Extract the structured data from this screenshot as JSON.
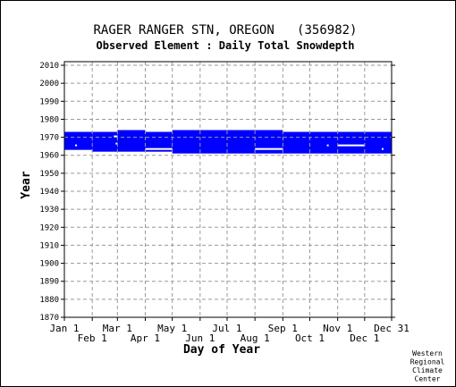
{
  "chart_data": {
    "type": "heatmap",
    "title": "RAGER RANGER STN, OREGON   (356982)",
    "subtitle": "Observed Element : Daily Total Snowdepth",
    "xlabel": "Day of Year",
    "ylabel": "Year",
    "credit": [
      "Western",
      "Regional",
      "Climate",
      "Center"
    ],
    "x_range_days": [
      1,
      365
    ],
    "ylim": [
      1870,
      2012
    ],
    "y_ticks": [
      1870,
      1880,
      1890,
      1900,
      1910,
      1920,
      1930,
      1940,
      1950,
      1960,
      1970,
      1980,
      1990,
      2000,
      2010
    ],
    "x_ticks_top": [
      {
        "label": "Jan 1",
        "day": 1
      },
      {
        "label": "Mar 1",
        "day": 60
      },
      {
        "label": "May 1",
        "day": 121
      },
      {
        "label": "Jul 1",
        "day": 182
      },
      {
        "label": "Sep 1",
        "day": 244
      },
      {
        "label": "Nov 1",
        "day": 305
      },
      {
        "label": "Dec 31",
        "day": 365
      }
    ],
    "x_ticks_bottom": [
      {
        "label": "Feb 1",
        "day": 32
      },
      {
        "label": "Apr 1",
        "day": 91
      },
      {
        "label": "Jun 1",
        "day": 152
      },
      {
        "label": "Aug 1",
        "day": 213
      },
      {
        "label": "Oct 1",
        "day": 274
      },
      {
        "label": "Dec 1",
        "day": 335
      }
    ],
    "grid": true,
    "color": "#0000ff",
    "data_blocks": [
      {
        "day_start": 1,
        "day_end": 32,
        "year_start": 1963,
        "year_end": 1973
      },
      {
        "day_start": 32,
        "day_end": 60,
        "year_start": 1962,
        "year_end": 1973
      },
      {
        "day_start": 60,
        "day_end": 91,
        "year_start": 1962,
        "year_end": 1974
      },
      {
        "day_start": 91,
        "day_end": 121,
        "year_start": 1962,
        "year_end": 1973
      },
      {
        "day_start": 121,
        "day_end": 244,
        "year_start": 1961,
        "year_end": 1974
      },
      {
        "day_start": 244,
        "day_end": 365,
        "year_start": 1961,
        "year_end": 1973
      }
    ],
    "gaps": [
      {
        "day_start": 13,
        "day_end": 15,
        "year_start": 1965,
        "year_end": 1966
      },
      {
        "day_start": 56,
        "day_end": 60,
        "year_start": 1970,
        "year_end": 1971
      },
      {
        "day_start": 58,
        "day_end": 60,
        "year_start": 1966,
        "year_end": 1967
      },
      {
        "day_start": 91,
        "day_end": 121,
        "year_start": 1963,
        "year_end": 1964
      },
      {
        "day_start": 213,
        "day_end": 244,
        "year_start": 1963,
        "year_end": 1964
      },
      {
        "day_start": 293,
        "day_end": 295,
        "year_start": 1965,
        "year_end": 1966
      },
      {
        "day_start": 305,
        "day_end": 335,
        "year_start": 1965,
        "year_end": 1966
      },
      {
        "day_start": 354,
        "day_end": 356,
        "year_start": 1963,
        "year_end": 1964
      }
    ]
  }
}
